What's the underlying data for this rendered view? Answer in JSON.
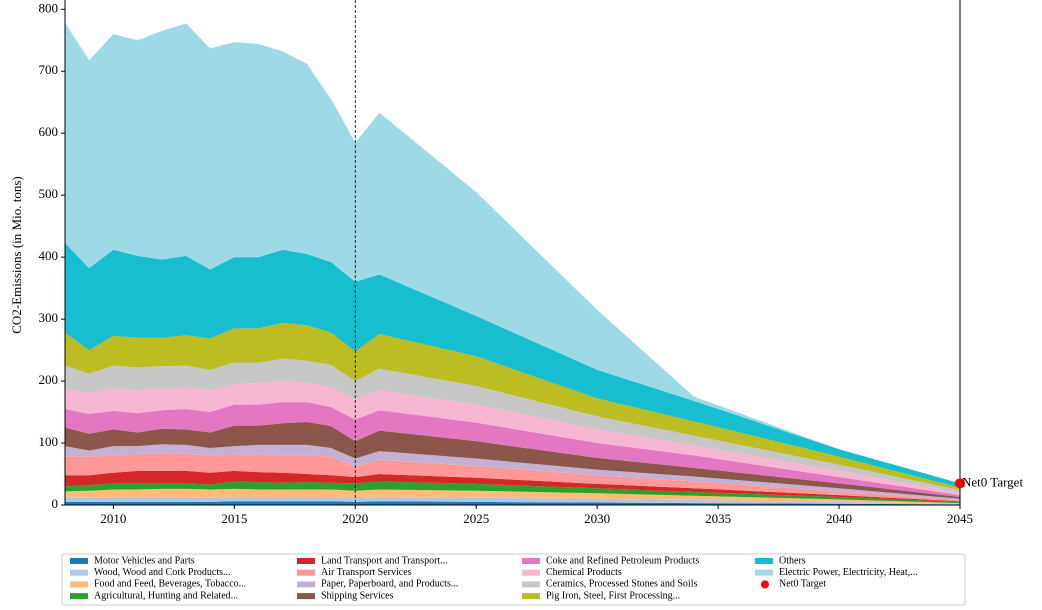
{
  "chart_data": {
    "type": "stacked_area",
    "y_label": "CO2-Emissions (in Mio. tons)",
    "x": [
      2008,
      2009,
      2010,
      2011,
      2012,
      2013,
      2014,
      2015,
      2016,
      2017,
      2018,
      2019,
      2020,
      2021,
      2025,
      2030,
      2034,
      2040,
      2045
    ],
    "xlim": [
      2008,
      2045
    ],
    "xticks": [
      2010,
      2015,
      2020,
      2025,
      2030,
      2035,
      2040,
      2045
    ],
    "ylim": [
      0,
      815
    ],
    "yticks": [
      0,
      100,
      200,
      300,
      400,
      500,
      600,
      700,
      800
    ],
    "vline_dashed": 2020,
    "series": [
      {
        "name": "Motor Vehicles and Parts",
        "color": "#1f77b4",
        "values": [
          5,
          5,
          5,
          5,
          5,
          5,
          5,
          6,
          6,
          6,
          6,
          6,
          5,
          6,
          5,
          4,
          3,
          2,
          1
        ]
      },
      {
        "name": "Wood, Wood and Cork Products...",
        "color": "#aec7e8",
        "values": [
          7,
          7,
          8,
          8,
          8,
          8,
          7,
          7,
          7,
          7,
          7,
          7,
          7,
          7,
          7,
          6,
          5,
          3,
          1
        ]
      },
      {
        "name": "Food and Feed, Beverages, Tobacco...",
        "color": "#ffbb78",
        "values": [
          10,
          11,
          12,
          12,
          13,
          13,
          13,
          13,
          12,
          12,
          12,
          12,
          11,
          12,
          11,
          9,
          7,
          4,
          1
        ]
      },
      {
        "name": "Agricultural, Hunting and Related...",
        "color": "#2ca02c",
        "values": [
          8,
          9,
          10,
          10,
          9,
          9,
          8,
          12,
          12,
          11,
          12,
          11,
          12,
          13,
          11,
          8,
          6,
          4,
          2
        ]
      },
      {
        "name": "Land Transport and Transport...",
        "color": "#d62728",
        "values": [
          18,
          16,
          17,
          20,
          20,
          20,
          19,
          17,
          16,
          16,
          13,
          12,
          10,
          12,
          10,
          7,
          6,
          3,
          1
        ]
      },
      {
        "name": "Air Transport Services",
        "color": "#ff9896",
        "values": [
          30,
          30,
          28,
          27,
          29,
          28,
          28,
          27,
          29,
          28,
          30,
          30,
          17,
          23,
          19,
          14,
          11,
          6,
          2
        ]
      },
      {
        "name": "Paper, Paperboard, and Products...",
        "color": "#c5b0d5",
        "values": [
          17,
          10,
          15,
          13,
          14,
          14,
          12,
          13,
          15,
          17,
          17,
          14,
          13,
          14,
          12,
          9,
          8,
          5,
          2
        ]
      },
      {
        "name": "Shipping Services",
        "color": "#8c564b",
        "values": [
          30,
          27,
          27,
          22,
          25,
          25,
          25,
          33,
          31,
          35,
          37,
          35,
          28,
          33,
          28,
          19,
          14,
          8,
          3
        ]
      },
      {
        "name": "Coke and Refined Petroleum Products",
        "color": "#e377c2",
        "values": [
          30,
          32,
          30,
          31,
          30,
          33,
          33,
          34,
          34,
          34,
          32,
          31,
          35,
          33,
          30,
          24,
          20,
          10,
          3
        ]
      },
      {
        "name": "Chemical Products",
        "color": "#f7b6d2",
        "values": [
          33,
          33,
          36,
          37,
          35,
          35,
          35,
          33,
          35,
          34,
          32,
          32,
          32,
          32,
          29,
          22,
          16,
          10,
          4
        ]
      },
      {
        "name": "Ceramics, Processed Stones and Soils",
        "color": "#c7c7c7",
        "values": [
          37,
          32,
          37,
          37,
          36,
          35,
          33,
          35,
          33,
          36,
          35,
          36,
          30,
          35,
          30,
          21,
          16,
          10,
          4
        ]
      },
      {
        "name": "Pig Iron, Steel, First Processing...",
        "color": "#bcbd22",
        "values": [
          53,
          38,
          48,
          48,
          46,
          49,
          51,
          55,
          55,
          58,
          57,
          52,
          48,
          56,
          48,
          29,
          23,
          13,
          4
        ]
      },
      {
        "name": "Others",
        "color": "#17becf",
        "values": [
          145,
          132,
          139,
          132,
          126,
          128,
          111,
          115,
          115,
          118,
          115,
          114,
          112,
          96,
          65,
          46,
          33,
          12,
          7
        ]
      },
      {
        "name": "Electric Power, Electricity, Heat,...",
        "color": "#9edae5",
        "values": [
          355,
          336,
          348,
          348,
          369,
          375,
          357,
          347,
          344,
          320,
          307,
          263,
          225,
          261,
          200,
          97,
          7,
          0,
          0
        ]
      }
    ],
    "target": {
      "name": "Net0 Target",
      "x": 2045,
      "y": 35,
      "color": "#ff0000"
    }
  }
}
